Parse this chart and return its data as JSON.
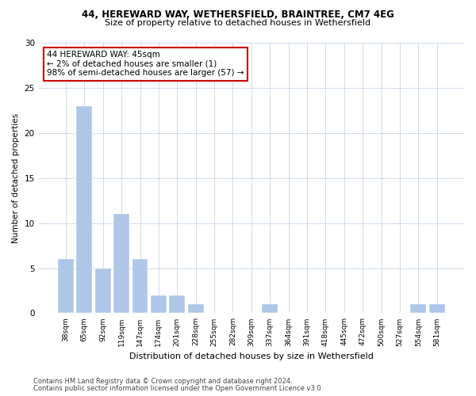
{
  "title_line1": "44, HEREWARD WAY, WETHERSFIELD, BRAINTREE, CM7 4EG",
  "title_line2": "Size of property relative to detached houses in Wethersfield",
  "xlabel": "Distribution of detached houses by size in Wethersfield",
  "ylabel": "Number of detached properties",
  "categories": [
    "38sqm",
    "65sqm",
    "92sqm",
    "119sqm",
    "147sqm",
    "174sqm",
    "201sqm",
    "228sqm",
    "255sqm",
    "282sqm",
    "309sqm",
    "337sqm",
    "364sqm",
    "391sqm",
    "418sqm",
    "445sqm",
    "472sqm",
    "500sqm",
    "527sqm",
    "554sqm",
    "581sqm"
  ],
  "values": [
    6,
    23,
    5,
    11,
    6,
    2,
    2,
    1,
    0,
    0,
    0,
    1,
    0,
    0,
    0,
    0,
    0,
    0,
    0,
    1,
    1
  ],
  "bar_color": "#aec6e8",
  "annotation_box_color": "#cc0000",
  "annotation_text": "44 HEREWARD WAY: 45sqm\n← 2% of detached houses are smaller (1)\n98% of semi-detached houses are larger (57) →",
  "ylim": [
    0,
    30
  ],
  "yticks": [
    0,
    5,
    10,
    15,
    20,
    25,
    30
  ],
  "footer_line1": "Contains HM Land Registry data © Crown copyright and database right 2024.",
  "footer_line2": "Contains public sector information licensed under the Open Government Licence v3.0.",
  "grid_color": "#c8d4e8",
  "background_color": "#ffffff"
}
